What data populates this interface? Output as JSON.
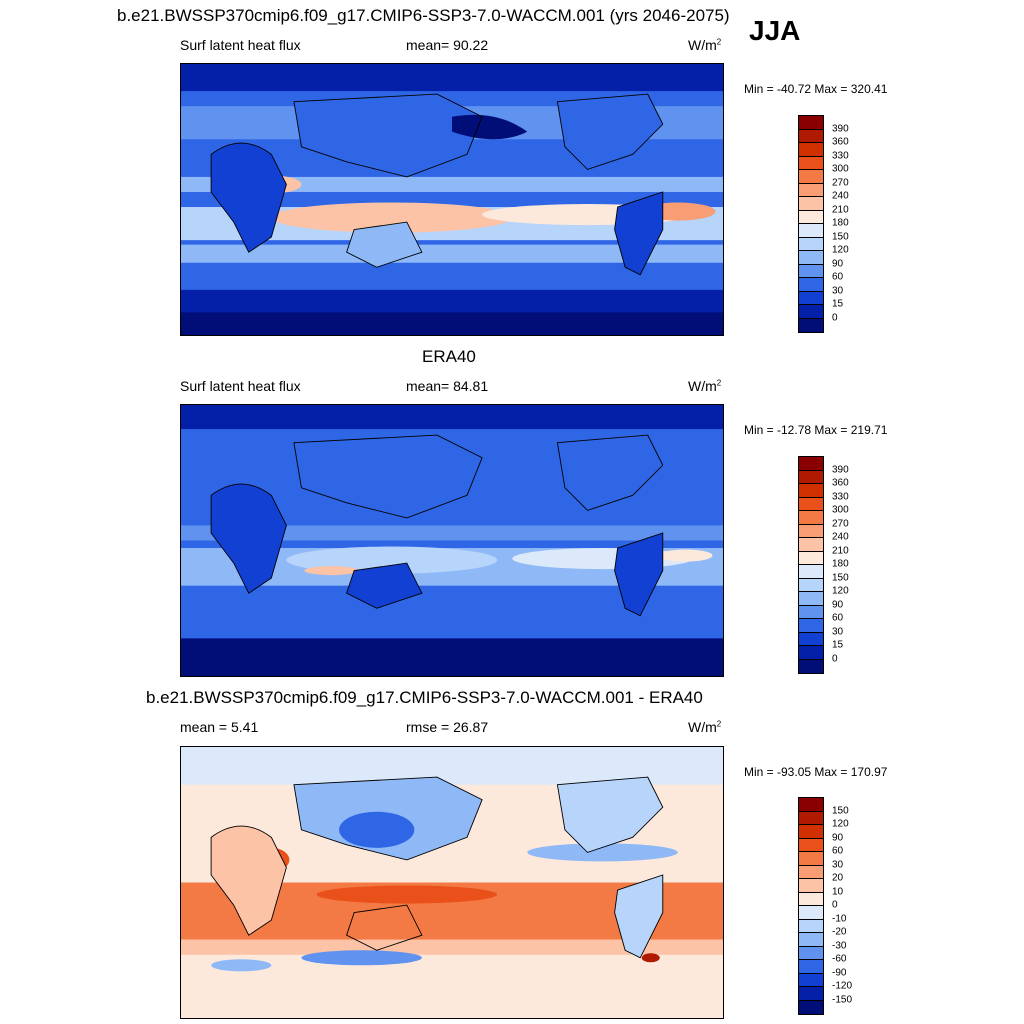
{
  "season": "JJA",
  "panels": [
    {
      "title": "b.e21.BWSSP370cmip6.f09_g17.CMIP6-SSP3-7.0-WACCM.001 (yrs 2046-2075)",
      "left_label": "Surf latent heat flux",
      "center_label": "mean=  90.22",
      "units": "W/m",
      "units_sup": "2",
      "minmax": "Min = -40.72 Max = 320.41",
      "colorbar": "abs"
    },
    {
      "title": "ERA40",
      "left_label": "Surf latent heat flux",
      "center_label": "mean=  84.81",
      "units": "W/m",
      "units_sup": "2",
      "minmax": "Min = -12.78 Max = 219.71",
      "colorbar": "abs"
    },
    {
      "title": "b.e21.BWSSP370cmip6.f09_g17.CMIP6-SSP3-7.0-WACCM.001 - ERA40",
      "left_label": "mean =   5.41",
      "center_label": "rmse =  26.87",
      "units": "W/m",
      "units_sup": "2",
      "minmax": "Min = -93.05 Max = 170.97",
      "colorbar": "diff"
    }
  ],
  "colorbars": {
    "abs": {
      "labels": [
        "390",
        "360",
        "330",
        "300",
        "270",
        "240",
        "210",
        "180",
        "150",
        "120",
        "90",
        "60",
        "30",
        "15",
        "0"
      ],
      "colors": [
        "#8a0000",
        "#b01a00",
        "#d02f00",
        "#e9501a",
        "#f47a45",
        "#f99d74",
        "#fcc3a6",
        "#fde9dc",
        "#dbe9fb",
        "#b7d4fa",
        "#8fb9f6",
        "#5f93ef",
        "#2f66e6",
        "#1140d3",
        "#0420a8",
        "#020e78"
      ]
    },
    "diff": {
      "labels": [
        "150",
        "120",
        "90",
        "60",
        "30",
        "20",
        "10",
        "0",
        "-10",
        "-20",
        "-30",
        "-60",
        "-90",
        "-120",
        "-150"
      ],
      "colors": [
        "#8a0000",
        "#b01a00",
        "#d02f00",
        "#e9501a",
        "#f47a45",
        "#f99d74",
        "#fcc3a6",
        "#fde9dc",
        "#dbe9fb",
        "#b7d4fa",
        "#8fb9f6",
        "#5f93ef",
        "#2f66e6",
        "#1140d3",
        "#0420a8",
        "#020e78"
      ]
    }
  }
}
